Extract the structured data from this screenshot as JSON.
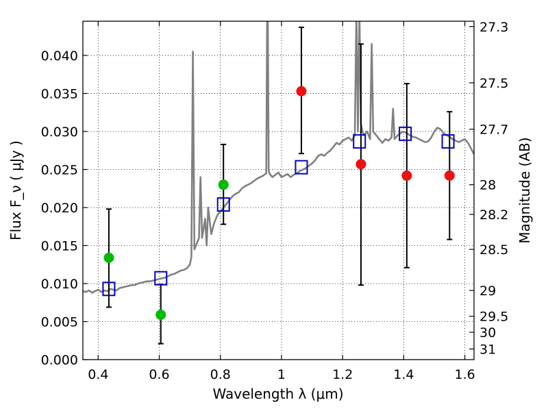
{
  "chart_data": {
    "type": "scatter",
    "title": "",
    "xlabel": "Wavelength  λ (μm)",
    "ylabel_left": "Flux  F_ν  ( μJy )",
    "ylabel_right": "Magnitude (AB)",
    "xlim": [
      0.35,
      1.63
    ],
    "ylim": [
      0.0,
      0.0445
    ],
    "grid": true,
    "x_ticks": [
      0.4,
      0.6,
      0.8,
      1.0,
      1.2,
      1.4,
      1.6
    ],
    "x_tick_labels": [
      "0.4",
      "0.6",
      "0.8",
      "1",
      "1.2",
      "1.4",
      "1.6"
    ],
    "y_ticks": [
      0.0,
      0.005,
      0.01,
      0.015,
      0.02,
      0.025,
      0.03,
      0.035,
      0.04
    ],
    "y_tick_labels": [
      "0.000",
      "0.005",
      "0.010",
      "0.015",
      "0.020",
      "0.025",
      "0.030",
      "0.035",
      "0.040"
    ],
    "right_ticks": [
      {
        "label": "27.3",
        "flux": 0.0438
      },
      {
        "label": "27.5",
        "flux": 0.0364
      },
      {
        "label": "27.7",
        "flux": 0.0303
      },
      {
        "label": "28",
        "flux": 0.023
      },
      {
        "label": "28.2",
        "flux": 0.0191
      },
      {
        "label": "28.5",
        "flux": 0.0145
      },
      {
        "label": "29",
        "flux": 0.0091
      },
      {
        "label": "29.5",
        "flux": 0.0057
      },
      {
        "label": "30",
        "flux": 0.0036
      },
      {
        "label": "31",
        "flux": 0.0014
      }
    ],
    "series": [
      {
        "name": "model spectrum",
        "kind": "line",
        "color": "#808080",
        "x": [
          0.35,
          0.36,
          0.37,
          0.38,
          0.39,
          0.4,
          0.41,
          0.42,
          0.43,
          0.44,
          0.45,
          0.46,
          0.47,
          0.48,
          0.49,
          0.5,
          0.51,
          0.52,
          0.53,
          0.54,
          0.55,
          0.56,
          0.57,
          0.58,
          0.59,
          0.6,
          0.61,
          0.62,
          0.63,
          0.64,
          0.65,
          0.66,
          0.67,
          0.68,
          0.69,
          0.7,
          0.705,
          0.71,
          0.715,
          0.72,
          0.73,
          0.735,
          0.74,
          0.75,
          0.755,
          0.76,
          0.77,
          0.78,
          0.79,
          0.8,
          0.81,
          0.82,
          0.83,
          0.84,
          0.85,
          0.86,
          0.87,
          0.88,
          0.89,
          0.9,
          0.91,
          0.92,
          0.93,
          0.94,
          0.95,
          0.953,
          0.955,
          0.958,
          0.96,
          0.97,
          0.98,
          0.99,
          1.0,
          1.01,
          1.02,
          1.03,
          1.04,
          1.05,
          1.06,
          1.07,
          1.08,
          1.09,
          1.1,
          1.11,
          1.12,
          1.13,
          1.14,
          1.15,
          1.16,
          1.17,
          1.18,
          1.19,
          1.2,
          1.21,
          1.22,
          1.23,
          1.24,
          1.245,
          1.25,
          1.255,
          1.26,
          1.265,
          1.27,
          1.28,
          1.29,
          1.295,
          1.3,
          1.31,
          1.32,
          1.33,
          1.34,
          1.35,
          1.36,
          1.365,
          1.37,
          1.38,
          1.39,
          1.4,
          1.41,
          1.42,
          1.43,
          1.44,
          1.45,
          1.46,
          1.47,
          1.48,
          1.49,
          1.5,
          1.51,
          1.52,
          1.53,
          1.54,
          1.55,
          1.56,
          1.57,
          1.58,
          1.59,
          1.6,
          1.61,
          1.62,
          1.63
        ],
        "y": [
          0.009,
          0.0089,
          0.0091,
          0.0088,
          0.009,
          0.0092,
          0.0089,
          0.0091,
          0.009,
          0.0093,
          0.0092,
          0.0091,
          0.0094,
          0.0095,
          0.0096,
          0.0097,
          0.0098,
          0.0098,
          0.01,
          0.0101,
          0.0102,
          0.0103,
          0.0103,
          0.0104,
          0.0105,
          0.0106,
          0.0107,
          0.0108,
          0.011,
          0.0112,
          0.0113,
          0.0115,
          0.0117,
          0.0118,
          0.012,
          0.0125,
          0.0135,
          0.0405,
          0.0145,
          0.015,
          0.016,
          0.024,
          0.016,
          0.0185,
          0.015,
          0.02,
          0.0165,
          0.018,
          0.019,
          0.0195,
          0.02,
          0.0205,
          0.021,
          0.0215,
          0.0218,
          0.022,
          0.0225,
          0.0228,
          0.023,
          0.0232,
          0.0235,
          0.0238,
          0.024,
          0.0242,
          0.0245,
          0.046,
          0.046,
          0.025,
          0.0245,
          0.024,
          0.0243,
          0.0246,
          0.024,
          0.0242,
          0.0244,
          0.024,
          0.0243,
          0.0245,
          0.0248,
          0.025,
          0.0252,
          0.0255,
          0.0258,
          0.0262,
          0.0268,
          0.027,
          0.0268,
          0.0272,
          0.0275,
          0.028,
          0.0285,
          0.0283,
          0.0288,
          0.029,
          0.0292,
          0.0288,
          0.0295,
          0.046,
          0.03,
          0.046,
          0.031,
          0.03,
          0.0295,
          0.03,
          0.029,
          0.0415,
          0.03,
          0.0295,
          0.029,
          0.0285,
          0.029,
          0.0288,
          0.0292,
          0.033,
          0.029,
          0.0295,
          0.0298,
          0.03,
          0.0298,
          0.0295,
          0.0293,
          0.0292,
          0.029,
          0.0288,
          0.0286,
          0.0287,
          0.0292,
          0.03,
          0.0305,
          0.0303,
          0.0298,
          0.0295,
          0.0293,
          0.029,
          0.0288,
          0.0286,
          0.0288,
          0.029,
          0.0285,
          0.0278,
          0.027
        ]
      },
      {
        "name": "model photometry",
        "kind": "open-square",
        "color": "#0000cc",
        "x": [
          0.435,
          0.605,
          0.81,
          1.065,
          1.255,
          1.405,
          1.545
        ],
        "y": [
          0.0093,
          0.0107,
          0.0204,
          0.0253,
          0.0287,
          0.0297,
          0.0287
        ]
      },
      {
        "name": "detections",
        "kind": "filled-circle",
        "color": "#00bb00",
        "x": [
          0.435,
          0.605,
          0.81
        ],
        "y": [
          0.0134,
          0.0059,
          0.023
        ]
      },
      {
        "name": "non-detections",
        "kind": "filled-circle",
        "color": "#ee1111",
        "x": [
          1.065,
          1.26,
          1.41,
          1.55
        ],
        "y": [
          0.0353,
          0.0257,
          0.0242,
          0.0242
        ]
      },
      {
        "name": "errorbars",
        "kind": "errorbar",
        "color": "#000000",
        "x": [
          0.435,
          0.605,
          0.81,
          1.065,
          1.26,
          1.41,
          1.55
        ],
        "low": [
          0.0069,
          0.0021,
          0.0178,
          0.0271,
          0.0098,
          0.0121,
          0.0158
        ],
        "high": [
          0.0198,
          0.0099,
          0.0283,
          0.0437,
          0.0415,
          0.0363,
          0.0326
        ]
      }
    ]
  }
}
